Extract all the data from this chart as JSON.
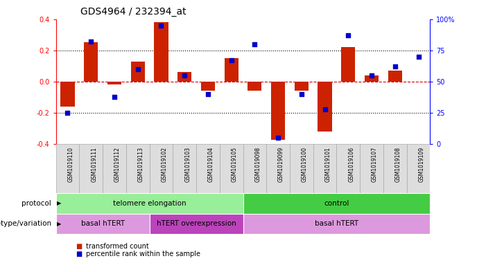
{
  "title": "GDS4964 / 232394_at",
  "samples": [
    "GSM1019110",
    "GSM1019111",
    "GSM1019112",
    "GSM1019113",
    "GSM1019102",
    "GSM1019103",
    "GSM1019104",
    "GSM1019105",
    "GSM1019098",
    "GSM1019099",
    "GSM1019100",
    "GSM1019101",
    "GSM1019106",
    "GSM1019107",
    "GSM1019108",
    "GSM1019109"
  ],
  "bar_values": [
    -0.16,
    0.25,
    -0.02,
    0.13,
    0.38,
    0.06,
    -0.06,
    0.15,
    -0.06,
    -0.37,
    -0.06,
    -0.32,
    0.22,
    0.04,
    0.07,
    0.0
  ],
  "dot_values": [
    25,
    82,
    38,
    60,
    95,
    55,
    40,
    67,
    80,
    5,
    40,
    28,
    87,
    55,
    62,
    70
  ],
  "ylim": [
    -0.4,
    0.4
  ],
  "yticks_left": [
    -0.4,
    -0.2,
    0.0,
    0.2,
    0.4
  ],
  "yticks_right": [
    0,
    25,
    50,
    75,
    100
  ],
  "ytick_right_labels": [
    "0",
    "25",
    "50",
    "75",
    "100%"
  ],
  "hlines": [
    0.2,
    -0.2
  ],
  "bar_color": "#cc2200",
  "dot_color": "#0000cc",
  "zero_line_color": "#cc0000",
  "hline_color": "#000000",
  "bg_color": "#ffffff",
  "title_fontsize": 10,
  "protocol_groups": [
    {
      "label": "telomere elongation",
      "start": 0,
      "end": 8,
      "color": "#99ee99"
    },
    {
      "label": "control",
      "start": 8,
      "end": 16,
      "color": "#44cc44"
    }
  ],
  "genotype_groups": [
    {
      "label": "basal hTERT",
      "start": 0,
      "end": 4,
      "color": "#dd99dd"
    },
    {
      "label": "hTERT overexpression",
      "start": 4,
      "end": 8,
      "color": "#bb44bb"
    },
    {
      "label": "basal hTERT",
      "start": 8,
      "end": 16,
      "color": "#dd99dd"
    }
  ],
  "protocol_label": "protocol",
  "genotype_label": "genotype/variation",
  "legend_bar_label": "transformed count",
  "legend_dot_label": "percentile rank within the sample",
  "sample_box_color": "#dddddd",
  "sample_box_edge": "#aaaaaa"
}
